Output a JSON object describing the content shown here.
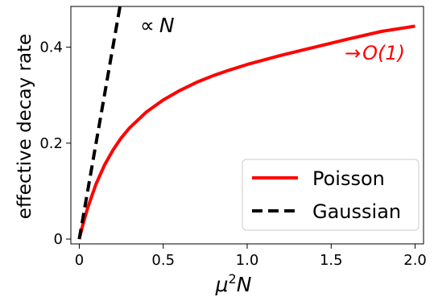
{
  "chart_data": {
    "type": "line",
    "xlabel_base": "μ",
    "xlabel_sup": "2",
    "xlabel_tail": "N",
    "ylabel": "effective decay rate",
    "xlim": [
      -0.05,
      2.05
    ],
    "ylim": [
      -0.01,
      0.485
    ],
    "xticks": [
      0,
      0.5,
      1.0,
      1.5,
      2.0
    ],
    "xtick_labels": [
      "0",
      "0.5",
      "1.0",
      "1.5",
      "2.0"
    ],
    "yticks": [
      0,
      0.2,
      0.4
    ],
    "ytick_labels": [
      "0",
      "0.2",
      "0.4"
    ],
    "grid": false,
    "legend_position": "bottom-right",
    "series": [
      {
        "name": "Poisson",
        "color": "#ff0000",
        "style": "solid",
        "x": [
          0,
          0.02,
          0.05,
          0.1,
          0.15,
          0.2,
          0.25,
          0.3,
          0.4,
          0.5,
          0.6,
          0.7,
          0.8,
          0.9,
          1.0,
          1.2,
          1.4,
          1.6,
          1.8,
          2.0
        ],
        "y": [
          0,
          0.028,
          0.065,
          0.115,
          0.154,
          0.185,
          0.211,
          0.232,
          0.265,
          0.29,
          0.31,
          0.327,
          0.341,
          0.353,
          0.364,
          0.383,
          0.4,
          0.417,
          0.433,
          0.444
        ]
      },
      {
        "name": "Gaussian",
        "color": "#000000",
        "style": "dashed",
        "x": [
          0,
          0.245
        ],
        "y": [
          0,
          0.49
        ]
      }
    ],
    "annotations": [
      {
        "prefix": "∝",
        "text": "N",
        "color": "#000000"
      },
      {
        "prefix": "→",
        "text": "O(1)",
        "color": "#ff0000"
      }
    ]
  }
}
